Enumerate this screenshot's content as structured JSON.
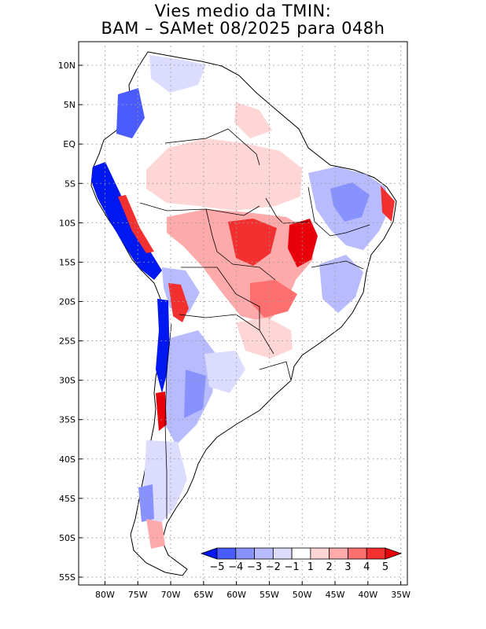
{
  "title": {
    "line1": "Vies medio da TMIN:",
    "line2": "BAM – SAMet 08/2025  para 048h"
  },
  "axes": {
    "lon_labels": [
      "80W",
      "75W",
      "70W",
      "65W",
      "60W",
      "55W",
      "50W",
      "45W",
      "40W",
      "35W"
    ],
    "lat_labels": [
      "10N",
      "5N",
      "EQ",
      "5S",
      "10S",
      "15S",
      "20S",
      "25S",
      "30S",
      "35S",
      "40S",
      "45S",
      "50S",
      "55S"
    ],
    "lon_range": [
      -84,
      -34
    ],
    "lat_range": [
      -56,
      13
    ]
  },
  "colorbar": {
    "labels": [
      "−5",
      "−4",
      "−3",
      "−2",
      "−1",
      "1",
      "2",
      "3",
      "4",
      "5"
    ],
    "colors": [
      "#0018f0",
      "#4a5cff",
      "#8892ff",
      "#b8bcff",
      "#dcdcff",
      "#ffffff",
      "#ffd6d6",
      "#ffaaaa",
      "#ff6f6f",
      "#f23030",
      "#e8000b"
    ]
  },
  "colors": {
    "land": "#ffffff",
    "coast": "#000000",
    "grid": "#9a9a9a"
  }
}
